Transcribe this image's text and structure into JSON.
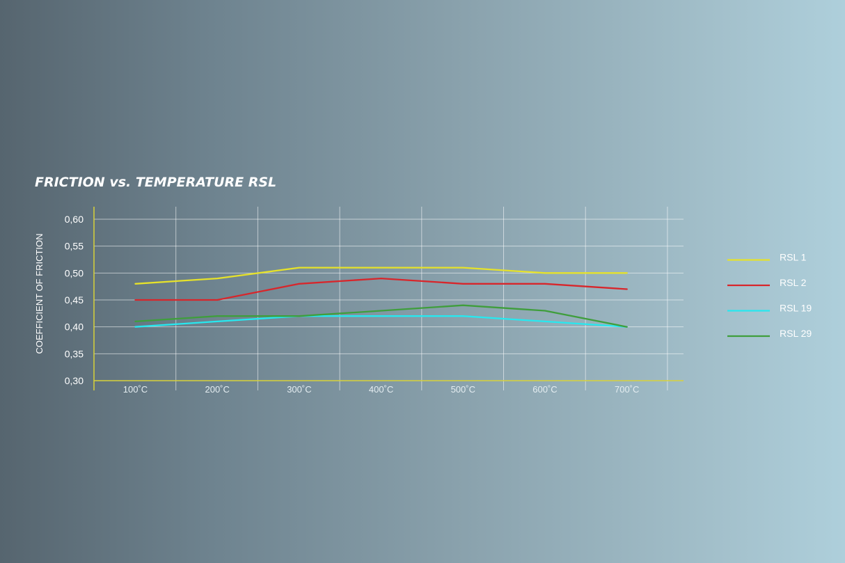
{
  "chart_data": {
    "type": "line",
    "title": "FRICTION vs. TEMPERATURE RSL",
    "xlabel": "",
    "ylabel": "COEFFICIENT OF FRICTION",
    "categories": [
      "100˚C",
      "200˚C",
      "300˚C",
      "400˚C",
      "500˚C",
      "600˚C",
      "700˚C"
    ],
    "yticks": [
      "0,30",
      "0,35",
      "0,40",
      "0,45",
      "0,50",
      "0,55",
      "0,60"
    ],
    "ylim": [
      0.3,
      0.62
    ],
    "grid": true,
    "legend_position": "right",
    "axis_color": "#d8d23a",
    "series": [
      {
        "name": "RSL 1",
        "color": "#e6e22a",
        "values": [
          0.48,
          0.49,
          0.51,
          0.51,
          0.51,
          0.5,
          0.5
        ]
      },
      {
        "name": "RSL 2",
        "color": "#d8262b",
        "values": [
          0.45,
          0.45,
          0.48,
          0.49,
          0.48,
          0.48,
          0.47
        ]
      },
      {
        "name": "RSL 19",
        "color": "#27e8ef",
        "values": [
          0.4,
          0.41,
          0.42,
          0.42,
          0.42,
          0.41,
          0.4
        ]
      },
      {
        "name": "RSL 29",
        "color": "#3f9e3c",
        "values": [
          0.41,
          0.42,
          0.42,
          0.43,
          0.44,
          0.43,
          0.4
        ]
      }
    ]
  }
}
